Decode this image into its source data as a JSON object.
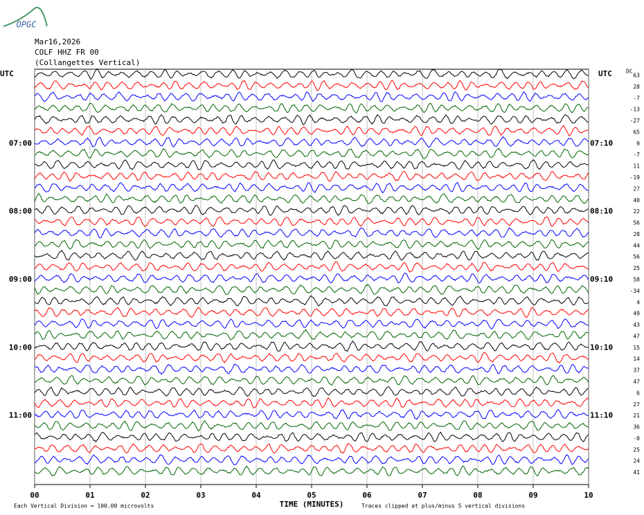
{
  "chart_data": {
    "type": "helicorder",
    "logo": "OPGC",
    "date": "Mar16,2026",
    "station": "COLF HHZ FR 00",
    "station_name": "(Collangettes Vertical)",
    "left_timezone": "UTC",
    "right_timezone": "UTC",
    "dc_label": "DC",
    "left_hour_labels": [
      "07:00",
      "08:00",
      "09:00",
      "10:00",
      "11:00"
    ],
    "right_hour_labels": [
      "07:10",
      "08:10",
      "09:10",
      "10:10",
      "11:10"
    ],
    "dc_offsets": [
      "63",
      "28",
      "-7",
      "-13",
      "-27",
      "65",
      "9",
      "-7",
      "11",
      "-19",
      "27",
      "40",
      "22",
      "56",
      "28",
      "44",
      "56",
      "25",
      "58",
      "-34",
      "4",
      "49",
      "43",
      "47",
      "15",
      "14",
      "37",
      "47",
      "6",
      "27",
      "21",
      "36",
      "-0",
      "25",
      "24",
      "41"
    ],
    "trace_colors": [
      "#000000",
      "#ff0000",
      "#0000ff",
      "#006400"
    ],
    "xlim": [
      0,
      10
    ],
    "xticks": [
      {
        "value": 0,
        "label": "00"
      },
      {
        "value": 1,
        "label": "01"
      },
      {
        "value": 2,
        "label": "02"
      },
      {
        "value": 3,
        "label": "03"
      },
      {
        "value": 4,
        "label": "04"
      },
      {
        "value": 5,
        "label": "05"
      },
      {
        "value": 6,
        "label": "06"
      },
      {
        "value": 7,
        "label": "07"
      },
      {
        "value": 8,
        "label": "08"
      },
      {
        "value": 9,
        "label": "09"
      },
      {
        "value": 10,
        "label": "10"
      }
    ],
    "x_label": "TIME (MINUTES)",
    "scale_note": "Each Vertical Division =  100.00 microvolts",
    "clip_note": "Traces clipped at plus/minus 5 vertical divisions",
    "grid": true
  }
}
